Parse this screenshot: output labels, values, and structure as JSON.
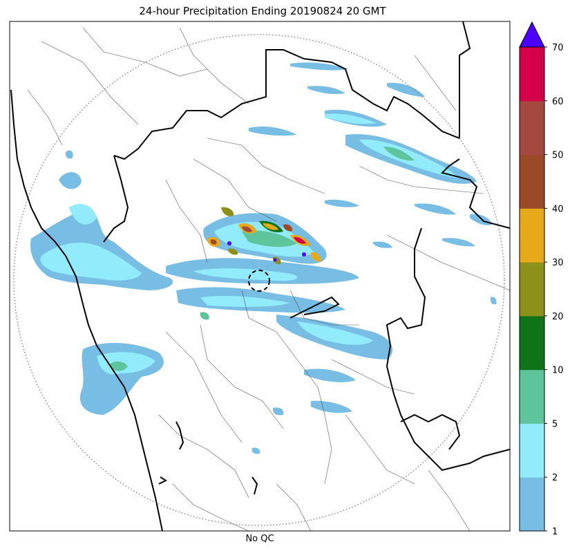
{
  "title": "24-hour Precipitation Ending 20190824 20 GMT",
  "xlabel": "No QC",
  "colorbar": {
    "extend_color": "#4b00ff",
    "bins": [
      {
        "from": "1",
        "to": "2",
        "color": "#77bde4"
      },
      {
        "from": "2",
        "to": "5",
        "color": "#91ebfb"
      },
      {
        "from": "5",
        "to": "10",
        "color": "#5ec49b"
      },
      {
        "from": "10",
        "to": "20",
        "color": "#0e7319"
      },
      {
        "from": "20",
        "to": "30",
        "color": "#8c9219"
      },
      {
        "from": "30",
        "to": "40",
        "color": "#e6a919"
      },
      {
        "from": "40",
        "to": "50",
        "color": "#9a4a26"
      },
      {
        "from": "50",
        "to": "60",
        "color": "#a4493f"
      },
      {
        "from": "60",
        "to": "70",
        "color": "#d40049"
      }
    ]
  },
  "map": {
    "range_ring_color": "#808080",
    "state_border_color": "#000000",
    "district_border_color": "#555555"
  }
}
